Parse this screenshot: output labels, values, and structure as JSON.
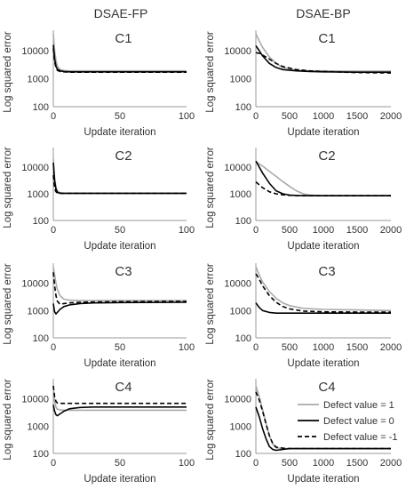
{
  "figure": {
    "column_titles": [
      "DSAE-FP",
      "DSAE-BP"
    ]
  },
  "legend": [
    {
      "label": "Defect value = 1",
      "color": "#aaaaaa",
      "dash": "solid"
    },
    {
      "label": "Defect value = 0",
      "color": "#000000",
      "dash": "solid"
    },
    {
      "label": "Defect value = -1",
      "color": "#000000",
      "dash": "dashed"
    }
  ],
  "chart_data": [
    {
      "type": "line",
      "title": "C1",
      "xlabel": "Update iteration",
      "ylabel": "Log squared error",
      "yscale": "log",
      "ylim": [
        100,
        40000
      ],
      "xlim": [
        0,
        100
      ],
      "yticks": [
        "100",
        "1000",
        "10000"
      ],
      "xticks": [
        "0",
        "50",
        "100"
      ],
      "series": [
        {
          "name": "Defect value = 1",
          "x": [
            0,
            1,
            2,
            3,
            5,
            8,
            12,
            20,
            30,
            50,
            100
          ],
          "y": [
            40000,
            10000,
            4500,
            2800,
            2100,
            1950,
            1900,
            1900,
            1900,
            1900,
            1900
          ]
        },
        {
          "name": "Defect value = 0",
          "x": [
            0,
            1,
            2,
            3,
            5,
            8,
            12,
            20,
            30,
            50,
            100
          ],
          "y": [
            16000,
            5000,
            2800,
            2200,
            1900,
            1800,
            1750,
            1750,
            1750,
            1750,
            1750
          ]
        },
        {
          "name": "Defect value = -1",
          "x": [
            0,
            1,
            2,
            3,
            5,
            8,
            12,
            20,
            30,
            50,
            100
          ],
          "y": [
            12000,
            4000,
            2500,
            2000,
            1800,
            1750,
            1700,
            1700,
            1700,
            1700,
            1700
          ]
        }
      ]
    },
    {
      "type": "line",
      "title": "C1",
      "xlabel": "Update iteration",
      "ylabel": "Log squared error",
      "yscale": "log",
      "ylim": [
        100,
        40000
      ],
      "xlim": [
        0,
        2000
      ],
      "yticks": [
        "100",
        "1000",
        "10000"
      ],
      "xticks": [
        "0",
        "500",
        "1000",
        "1500",
        "2000"
      ],
      "series": [
        {
          "name": "Defect value = 1",
          "x": [
            0,
            50,
            100,
            200,
            300,
            400,
            600,
            800,
            1000,
            1500,
            2000
          ],
          "y": [
            40000,
            22000,
            13000,
            6000,
            3500,
            2500,
            2000,
            1900,
            1900,
            1850,
            1850
          ]
        },
        {
          "name": "Defect value = 0",
          "x": [
            0,
            50,
            100,
            200,
            300,
            400,
            600,
            800,
            1000,
            1500,
            2000
          ],
          "y": [
            15000,
            10000,
            6500,
            3500,
            2500,
            2100,
            1900,
            1800,
            1750,
            1700,
            1700
          ]
        },
        {
          "name": "Defect value = -1",
          "x": [
            0,
            50,
            100,
            200,
            300,
            400,
            600,
            800,
            1000,
            1500,
            2000
          ],
          "y": [
            8500,
            8000,
            7000,
            5000,
            3500,
            2700,
            2100,
            1900,
            1800,
            1650,
            1600
          ]
        }
      ]
    },
    {
      "type": "line",
      "title": "C2",
      "xlabel": "Update iteration",
      "ylabel": "Log squared error",
      "yscale": "log",
      "ylim": [
        100,
        40000
      ],
      "xlim": [
        0,
        100
      ],
      "yticks": [
        "100",
        "1000",
        "10000"
      ],
      "xticks": [
        "0",
        "50",
        "100"
      ],
      "series": [
        {
          "name": "Defect value = 1",
          "x": [
            0,
            1,
            2,
            3,
            5,
            8,
            12,
            20,
            30,
            50,
            100
          ],
          "y": [
            20000,
            4000,
            1800,
            1300,
            1100,
            1050,
            1050,
            1050,
            1050,
            1050,
            1050
          ]
        },
        {
          "name": "Defect value = 0",
          "x": [
            0,
            1,
            2,
            3,
            5,
            8,
            12,
            20,
            30,
            50,
            100
          ],
          "y": [
            15000,
            3000,
            1500,
            1150,
            1050,
            1050,
            1050,
            1050,
            1050,
            1050,
            1050
          ]
        },
        {
          "name": "Defect value = -1",
          "x": [
            0,
            1,
            2,
            3,
            5,
            8,
            12,
            20,
            30,
            50,
            100
          ],
          "y": [
            5000,
            1600,
            1200,
            1080,
            1050,
            1050,
            1050,
            1050,
            1050,
            1050,
            1050
          ]
        }
      ]
    },
    {
      "type": "line",
      "title": "C2",
      "xlabel": "Update iteration",
      "ylabel": "Log squared error",
      "yscale": "log",
      "ylim": [
        100,
        40000
      ],
      "xlim": [
        0,
        2000
      ],
      "yticks": [
        "100",
        "1000",
        "10000"
      ],
      "xticks": [
        "0",
        "500",
        "1000",
        "1500",
        "2000"
      ],
      "series": [
        {
          "name": "Defect value = 1",
          "x": [
            0,
            100,
            200,
            300,
            400,
            500,
            600,
            700,
            800,
            1000,
            1500,
            2000
          ],
          "y": [
            16000,
            11000,
            7000,
            4500,
            2900,
            1900,
            1300,
            1000,
            900,
            850,
            850,
            850
          ]
        },
        {
          "name": "Defect value = 0",
          "x": [
            0,
            100,
            200,
            300,
            400,
            500,
            600,
            700,
            800,
            1000,
            1500,
            2000
          ],
          "y": [
            17000,
            6000,
            2500,
            1300,
            1000,
            900,
            870,
            860,
            850,
            850,
            850,
            850
          ]
        },
        {
          "name": "Defect value = -1",
          "x": [
            0,
            100,
            200,
            300,
            400,
            500,
            600,
            700,
            800,
            1000,
            1500,
            2000
          ],
          "y": [
            2800,
            1700,
            1200,
            1000,
            920,
            880,
            860,
            850,
            850,
            850,
            850,
            850
          ]
        }
      ]
    },
    {
      "type": "line",
      "title": "C3",
      "xlabel": "Update iteration",
      "ylabel": "Log squared error",
      "yscale": "log",
      "ylim": [
        100,
        40000
      ],
      "xlim": [
        0,
        100
      ],
      "yticks": [
        "100",
        "1000",
        "10000"
      ],
      "xticks": [
        "0",
        "50",
        "100"
      ],
      "series": [
        {
          "name": "Defect value = 1",
          "x": [
            0,
            1,
            2,
            3,
            5,
            8,
            12,
            20,
            30,
            50,
            100
          ],
          "y": [
            40000,
            20000,
            10000,
            6000,
            3500,
            2600,
            2400,
            2300,
            2300,
            2300,
            2300
          ]
        },
        {
          "name": "Defect value = 0",
          "x": [
            0,
            1,
            2,
            3,
            5,
            8,
            12,
            20,
            30,
            50,
            100
          ],
          "y": [
            1800,
            900,
            750,
            850,
            1100,
            1400,
            1600,
            1800,
            1900,
            1950,
            2000
          ]
        },
        {
          "name": "Defect value = -1",
          "x": [
            0,
            1,
            2,
            3,
            5,
            8,
            12,
            20,
            30,
            50,
            100
          ],
          "y": [
            25000,
            8000,
            3500,
            2200,
            1700,
            1800,
            1900,
            2000,
            2050,
            2100,
            2150
          ]
        }
      ]
    },
    {
      "type": "line",
      "title": "C3",
      "xlabel": "Update iteration",
      "ylabel": "Log squared error",
      "yscale": "log",
      "ylim": [
        100,
        40000
      ],
      "xlim": [
        0,
        2000
      ],
      "yticks": [
        "100",
        "1000",
        "10000"
      ],
      "xticks": [
        "0",
        "500",
        "1000",
        "1500",
        "2000"
      ],
      "series": [
        {
          "name": "Defect value = 1",
          "x": [
            0,
            50,
            100,
            200,
            300,
            400,
            500,
            700,
            1000,
            1500,
            2000
          ],
          "y": [
            40000,
            20000,
            11000,
            5000,
            2800,
            1900,
            1500,
            1200,
            1100,
            1050,
            1000
          ]
        },
        {
          "name": "Defect value = 0",
          "x": [
            0,
            50,
            100,
            200,
            300,
            400,
            500,
            700,
            1000,
            1500,
            2000
          ],
          "y": [
            1900,
            1300,
            1000,
            850,
            800,
            800,
            800,
            800,
            800,
            800,
            800
          ]
        },
        {
          "name": "Defect value = -1",
          "x": [
            0,
            50,
            100,
            200,
            300,
            400,
            500,
            700,
            1000,
            1500,
            2000
          ],
          "y": [
            22000,
            14000,
            8000,
            3500,
            2000,
            1400,
            1150,
            950,
            900,
            880,
            870
          ]
        }
      ]
    },
    {
      "type": "line",
      "title": "C4",
      "xlabel": "Update iteration",
      "ylabel": "Log squared error",
      "yscale": "log",
      "ylim": [
        100,
        40000
      ],
      "xlim": [
        0,
        100
      ],
      "yticks": [
        "100",
        "1000",
        "10000"
      ],
      "xticks": [
        "0",
        "50",
        "100"
      ],
      "series": [
        {
          "name": "Defect value = 1",
          "x": [
            0,
            1,
            2,
            3,
            5,
            8,
            12,
            20,
            30,
            50,
            100
          ],
          "y": [
            25000,
            8000,
            5000,
            4200,
            3900,
            3800,
            3800,
            3800,
            3800,
            3800,
            3800
          ]
        },
        {
          "name": "Defect value = 0",
          "x": [
            0,
            1,
            2,
            3,
            5,
            8,
            12,
            20,
            30,
            50,
            100
          ],
          "y": [
            6000,
            3500,
            2600,
            2400,
            2800,
            3500,
            4300,
            4800,
            5000,
            5000,
            5000
          ]
        },
        {
          "name": "Defect value = -1",
          "x": [
            0,
            1,
            2,
            3,
            5,
            8,
            12,
            20,
            30,
            50,
            100
          ],
          "y": [
            30000,
            12000,
            8000,
            7000,
            6800,
            6800,
            6800,
            6800,
            6800,
            6800,
            6800
          ]
        }
      ]
    },
    {
      "type": "line",
      "title": "C4",
      "xlabel": "Update iteration",
      "ylabel": "Log squared error",
      "yscale": "log",
      "ylim": [
        100,
        40000
      ],
      "xlim": [
        0,
        2000
      ],
      "yticks": [
        "100",
        "1000",
        "10000"
      ],
      "xticks": [
        "0",
        "500",
        "1000",
        "1500",
        "2000"
      ],
      "legend": "right",
      "series": [
        {
          "name": "Defect value = 1",
          "x": [
            0,
            50,
            100,
            150,
            200,
            250,
            300,
            400,
            500,
            700,
            1000,
            1500,
            2000
          ],
          "y": [
            30000,
            12000,
            4000,
            1300,
            450,
            220,
            160,
            150,
            150,
            150,
            150,
            150,
            150
          ]
        },
        {
          "name": "Defect value = 0",
          "x": [
            0,
            50,
            100,
            150,
            200,
            250,
            300,
            400,
            500,
            700,
            1000,
            1500,
            2000
          ],
          "y": [
            5000,
            2200,
            800,
            350,
            180,
            140,
            130,
            140,
            150,
            150,
            150,
            150,
            150
          ]
        },
        {
          "name": "Defect value = -1",
          "x": [
            0,
            50,
            100,
            150,
            200,
            250,
            300,
            400,
            500,
            700,
            1000,
            1500,
            2000
          ],
          "y": [
            18000,
            9000,
            3500,
            1200,
            450,
            230,
            170,
            155,
            150,
            150,
            150,
            150,
            150
          ]
        }
      ]
    }
  ]
}
